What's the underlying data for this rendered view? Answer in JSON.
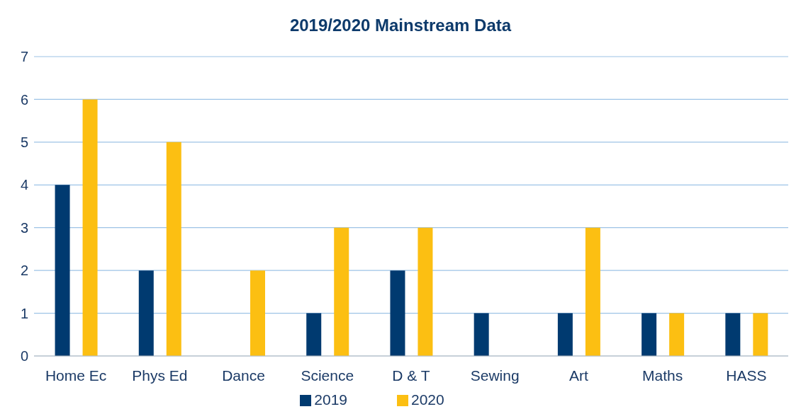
{
  "chart_data": {
    "type": "bar",
    "title": "2019/2020 Mainstream Data",
    "categories": [
      "Home Ec",
      "Phys Ed",
      "Dance",
      "Science",
      "D & T",
      "Sewing",
      "Art",
      "Maths",
      "HASS"
    ],
    "series": [
      {
        "name": "2019",
        "color": "#003a70",
        "values": [
          4,
          2,
          0,
          1,
          2,
          1,
          1,
          1,
          1
        ]
      },
      {
        "name": "2020",
        "color": "#fcbf12",
        "values": [
          6,
          5,
          2,
          3,
          3,
          0,
          3,
          1,
          1
        ]
      }
    ],
    "ylim": [
      0,
      7
    ],
    "yticks": [
      0,
      1,
      2,
      3,
      4,
      5,
      6,
      7
    ],
    "grid": "y",
    "legend": "bottom"
  }
}
